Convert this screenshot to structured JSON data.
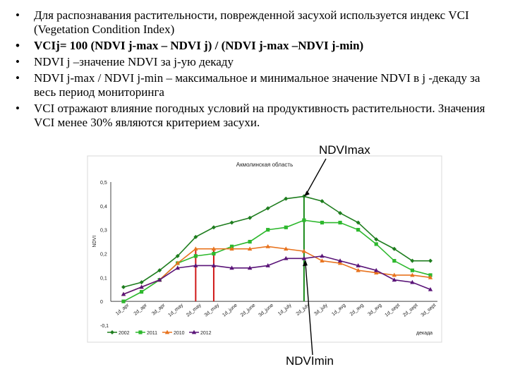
{
  "bullets": [
    {
      "text": "Для распознавания растительности, поврежденной засухой используется индекс VCI (Vegetation Condition Index)",
      "bold": false
    },
    {
      "text": "VCIj= 100 (NDVI j-max – NDVI j) / (NDVI j-max –NDVI j-min)",
      "bold": true
    },
    {
      "text": "NDVI j –значение NDVI  за j-ую декаду",
      "bold": false
    },
    {
      "text": "NDVI j-max / NDVI j-min – максимальное и  минимальное значение NDVI в j -декаду за весь период мониторинга",
      "bold": false
    },
    {
      "text": "VCI отражают влияние погодных условий на продуктивность растительности. Значения VCI менее 30% являются критерием засухи.",
      "bold": false
    }
  ],
  "bullet_symbol": "•",
  "annotations": {
    "ndvi_max": "NDVImax",
    "ndvi_min": "NDVImin"
  },
  "colors": {
    "s2002": "#1e7d1e",
    "s2011": "#2db82d",
    "s2010": "#77e033",
    "s2012": "#e8731e",
    "s2012b": "#5a1478",
    "vline_max": "#1a8a1a",
    "vline_red": "#d01818"
  },
  "chart_data": {
    "type": "line",
    "title": "Акмолинская область",
    "ylabel": "NDVI",
    "xlabel": "декада",
    "ylim": [
      -0.1,
      0.5
    ],
    "yticks": [
      "-0,1",
      "0",
      "0,1",
      "0,2",
      "0,3",
      "0,4",
      "0,5"
    ],
    "ytick_values": [
      -0.1,
      0,
      0.1,
      0.2,
      0.3,
      0.4,
      0.5
    ],
    "categories": [
      "1d_apr",
      "2d_apr",
      "3d_apr",
      "1d_may",
      "2d_may",
      "3d_may",
      "1d_june",
      "2d_june",
      "3d_june",
      "1d_july",
      "2d_july",
      "3d_july",
      "1d_avg",
      "2d_avg",
      "3d_avg",
      "1d_sept",
      "2d_sept",
      "3d_sept"
    ],
    "series": [
      {
        "name": "2002",
        "color_key": "s2002",
        "marker": "diamond",
        "values": [
          0.06,
          0.08,
          0.13,
          0.19,
          0.27,
          0.31,
          0.33,
          0.35,
          0.39,
          0.43,
          0.44,
          0.42,
          0.37,
          0.33,
          0.26,
          0.22,
          0.17,
          0.17
        ]
      },
      {
        "name": "2011",
        "color_key": "s2011",
        "marker": "square",
        "values": [
          0.0,
          0.04,
          0.09,
          0.16,
          0.19,
          0.2,
          0.23,
          0.25,
          0.3,
          0.31,
          0.34,
          0.33,
          0.33,
          0.3,
          0.24,
          0.17,
          0.13,
          0.11
        ]
      },
      {
        "name": "2010",
        "color_key": "s2012",
        "marker": "triangle",
        "values": [
          0.03,
          0.06,
          0.09,
          0.16,
          0.22,
          0.22,
          0.22,
          0.22,
          0.23,
          0.22,
          0.21,
          0.17,
          0.16,
          0.13,
          0.12,
          0.11,
          0.11,
          0.1
        ]
      },
      {
        "name": "2012",
        "color_key": "s2012b",
        "marker": "triangle",
        "values": [
          0.03,
          0.06,
          0.09,
          0.14,
          0.15,
          0.15,
          0.14,
          0.14,
          0.15,
          0.18,
          0.18,
          0.19,
          0.17,
          0.15,
          0.13,
          0.09,
          0.08,
          0.05
        ]
      }
    ],
    "vertical_lines": [
      {
        "x_index": 4,
        "to_series": "2010",
        "color_key": "vline_red"
      },
      {
        "x_index": 5,
        "to_series": "2010",
        "color_key": "vline_red"
      },
      {
        "x_index": 10,
        "to_series": "2002",
        "color_key": "vline_max"
      }
    ],
    "legend": [
      "2002",
      "2011",
      "2010",
      "2012"
    ],
    "legend_placement": "bottom"
  }
}
